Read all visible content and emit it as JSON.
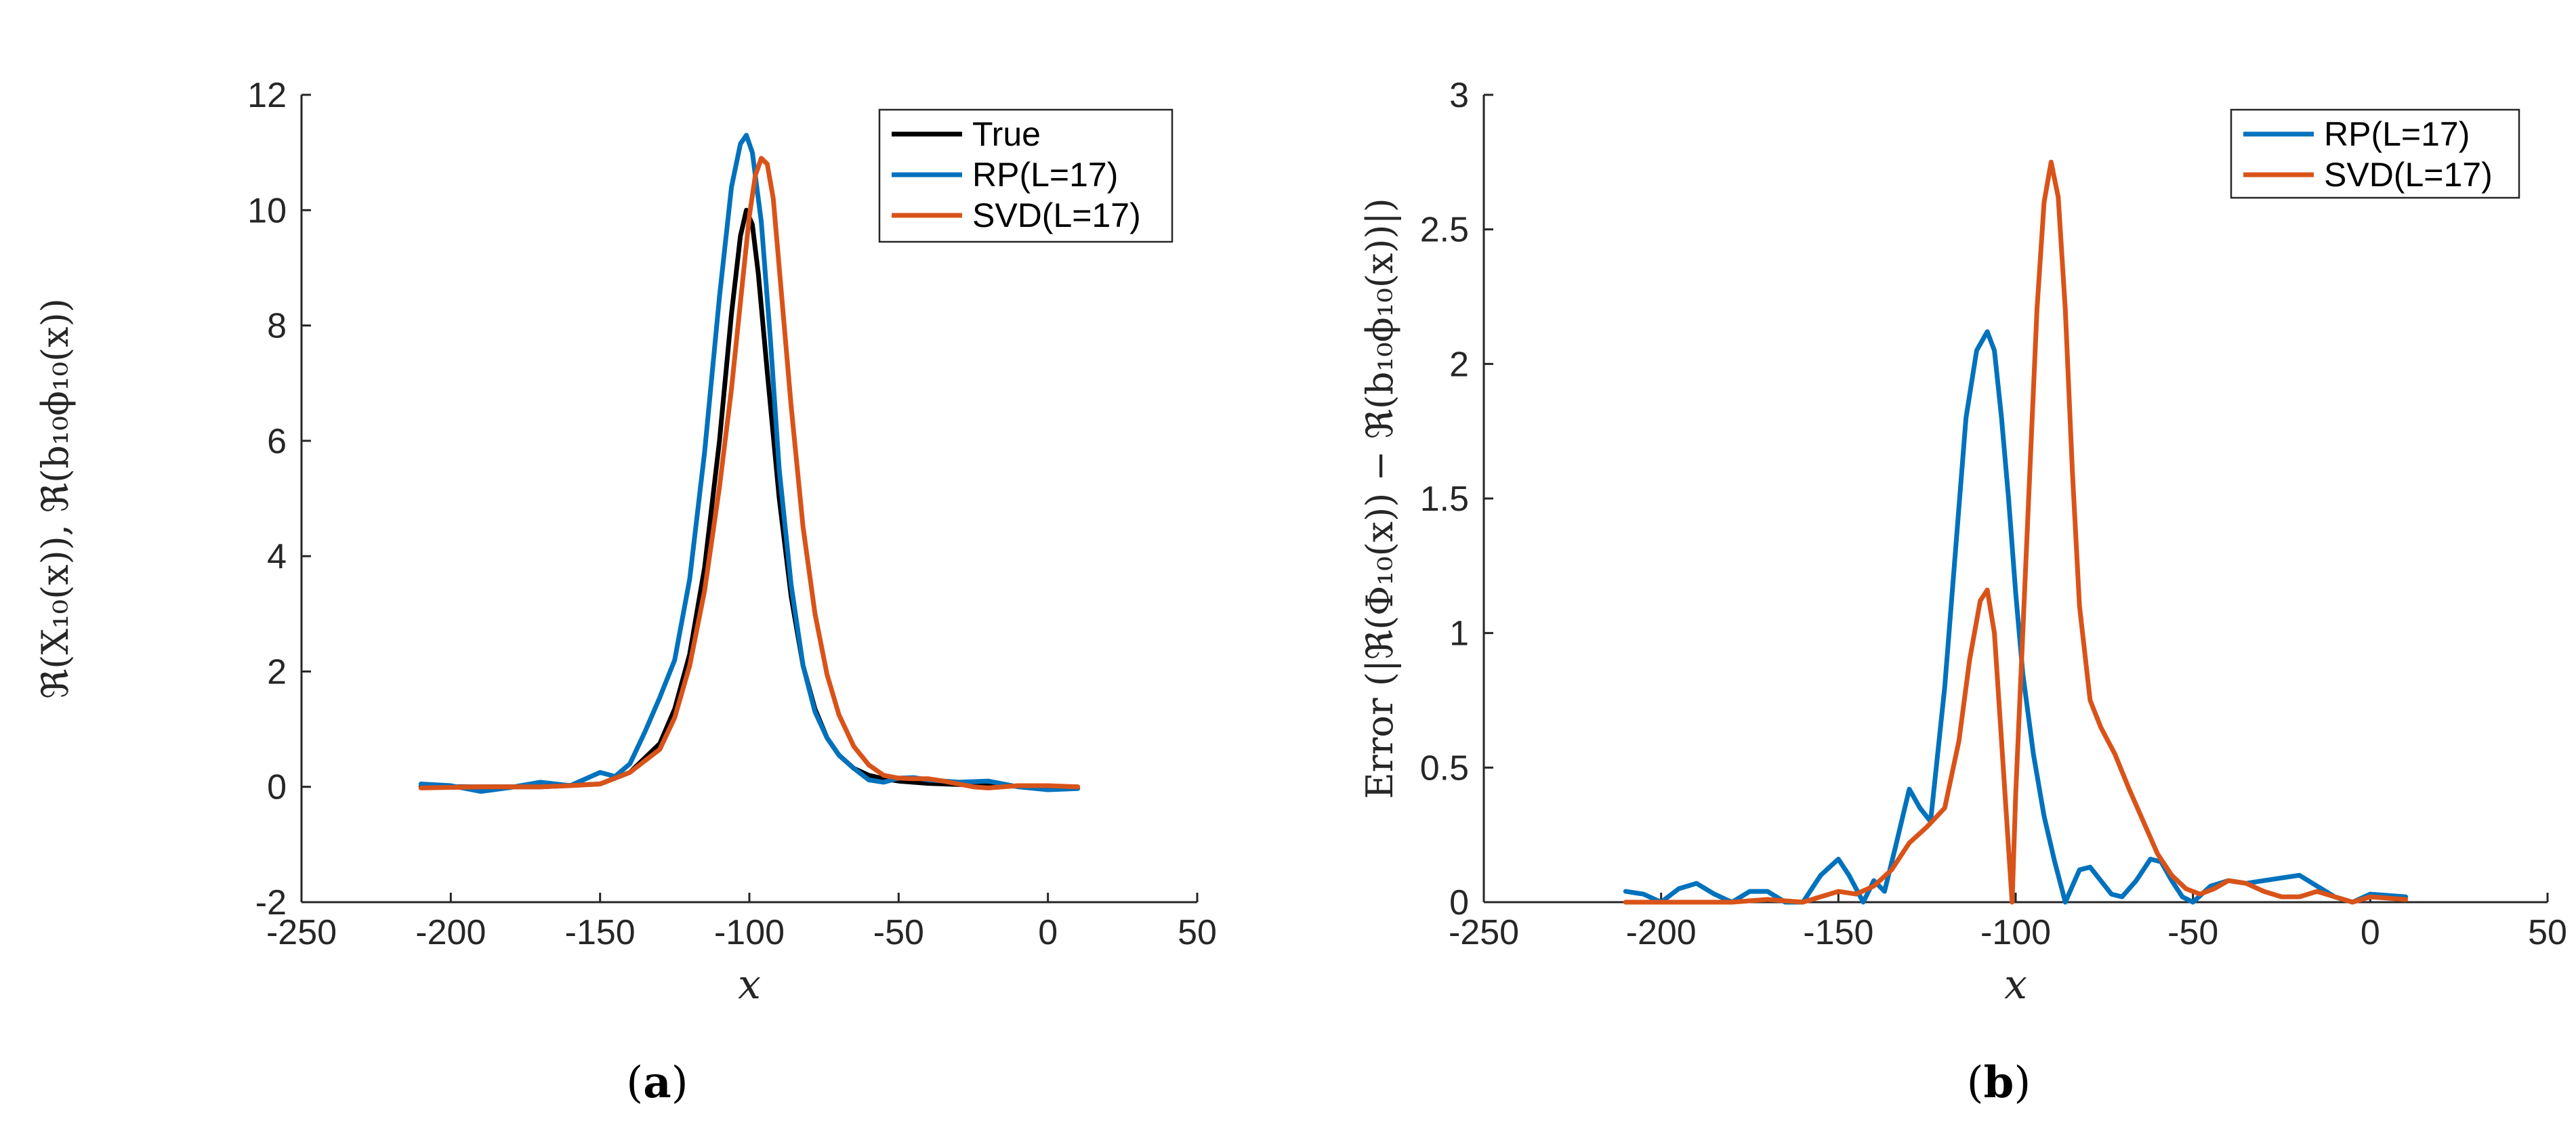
{
  "chart_data": [
    {
      "type": "line",
      "panel": "a",
      "caption": "(a)",
      "caption_parts": [
        "(",
        "a",
        ")"
      ],
      "xlabel": "x",
      "ylabel": "ℜ(X₁₀(x)), ℜ(b₁₀ϕ₁₀(x))",
      "xlim": [
        -250,
        50
      ],
      "ylim": [
        -2,
        12
      ],
      "xticks": [
        -250,
        -200,
        -150,
        -100,
        -50,
        0,
        50
      ],
      "yticks": [
        -2,
        0,
        2,
        4,
        6,
        8,
        10,
        12
      ],
      "xtick_labels": [
        "-250",
        "-200",
        "-150",
        "-100",
        "-50",
        "0",
        "50"
      ],
      "ytick_labels": [
        "-2",
        "0",
        "2",
        "4",
        "6",
        "8",
        "10",
        "12"
      ],
      "legend_position": "top-right",
      "series": [
        {
          "name": "True",
          "color": "#000000",
          "x": [
            -210,
            -190,
            -170,
            -150,
            -140,
            -130,
            -125,
            -120,
            -115,
            -110,
            -106,
            -103,
            -101,
            -99,
            -97,
            -94,
            -90,
            -86,
            -82,
            -78,
            -74,
            -70,
            -65,
            -60,
            -55,
            -50,
            -40,
            -30,
            -20,
            -10,
            0,
            10
          ],
          "y": [
            0,
            0,
            0,
            0.05,
            0.25,
            0.75,
            1.35,
            2.3,
            3.8,
            6.0,
            8.2,
            9.55,
            10.0,
            9.75,
            8.9,
            7.2,
            5.0,
            3.3,
            2.1,
            1.35,
            0.85,
            0.55,
            0.32,
            0.2,
            0.14,
            0.1,
            0.06,
            0.04,
            0.03,
            0.01,
            0,
            0
          ]
        },
        {
          "name": "RP(L=17)",
          "color": "#0072BD",
          "x": [
            -210,
            -200,
            -190,
            -180,
            -170,
            -160,
            -150,
            -145,
            -140,
            -135,
            -130,
            -125,
            -120,
            -115,
            -110,
            -106,
            -103,
            -101,
            -99,
            -96,
            -93,
            -90,
            -86,
            -82,
            -78,
            -74,
            -70,
            -65,
            -60,
            -55,
            -50,
            -45,
            -40,
            -30,
            -20,
            -10,
            0,
            10
          ],
          "y": [
            0.05,
            0.02,
            -0.08,
            -0.01,
            0.08,
            0.02,
            0.25,
            0.18,
            0.4,
            0.95,
            1.55,
            2.2,
            3.6,
            5.8,
            8.5,
            10.4,
            11.15,
            11.3,
            11.0,
            9.8,
            7.8,
            5.5,
            3.5,
            2.1,
            1.3,
            0.85,
            0.55,
            0.32,
            0.12,
            0.08,
            0.15,
            0.16,
            0.12,
            0.08,
            0.1,
            0,
            -0.05,
            -0.03
          ]
        },
        {
          "name": "SVD(L=17)",
          "color": "#D95319",
          "x": [
            -210,
            -190,
            -170,
            -160,
            -150,
            -140,
            -130,
            -125,
            -120,
            -115,
            -110,
            -106,
            -103,
            -100,
            -98,
            -96,
            -94,
            -92,
            -90,
            -86,
            -82,
            -78,
            -74,
            -70,
            -65,
            -60,
            -55,
            -50,
            -45,
            -40,
            -35,
            -30,
            -25,
            -20,
            -10,
            0,
            10
          ],
          "y": [
            -0.02,
            0,
            0,
            0.02,
            0.05,
            0.25,
            0.65,
            1.2,
            2.1,
            3.4,
            5.2,
            6.9,
            8.4,
            9.9,
            10.6,
            10.9,
            10.8,
            10.2,
            9.0,
            6.6,
            4.5,
            3.0,
            1.95,
            1.25,
            0.7,
            0.38,
            0.2,
            0.15,
            0.14,
            0.14,
            0.1,
            0.05,
            0,
            -0.02,
            0.02,
            0.02,
            0
          ]
        }
      ]
    },
    {
      "type": "line",
      "panel": "b",
      "caption": "(b)",
      "caption_parts": [
        "(",
        "b",
        ")"
      ],
      "xlabel": "x",
      "ylabel": "Error (|ℜ(Φ₁₀(x)) − ℜ(b₁₀ϕ₁₀(x))|)",
      "xlim": [
        -250,
        50
      ],
      "ylim": [
        0,
        3
      ],
      "xticks": [
        -250,
        -200,
        -150,
        -100,
        -50,
        0,
        50
      ],
      "yticks": [
        0,
        0.5,
        1,
        1.5,
        2,
        2.5,
        3
      ],
      "xtick_labels": [
        "-250",
        "-200",
        "-150",
        "-100",
        "-50",
        "0",
        "50"
      ],
      "ytick_labels": [
        "0",
        "0.5",
        "1",
        "1.5",
        "2",
        "2.5",
        "3"
      ],
      "legend_position": "top-right",
      "series": [
        {
          "name": "RP(L=17)",
          "color": "#0072BD",
          "x": [
            -210,
            -205,
            -200,
            -195,
            -190,
            -185,
            -180,
            -175,
            -170,
            -165,
            -160,
            -155,
            -150,
            -147,
            -143,
            -140,
            -137,
            -134,
            -130,
            -127,
            -124,
            -120,
            -117,
            -114,
            -111,
            -108,
            -106,
            -104,
            -102,
            -100,
            -98,
            -95,
            -92,
            -89,
            -86,
            -84,
            -82,
            -79,
            -76,
            -73,
            -70,
            -66,
            -62,
            -59,
            -56,
            -53,
            -50,
            -45,
            -40,
            -35,
            -30,
            -25,
            -20,
            -15,
            -10,
            -5,
            0,
            10
          ],
          "y": [
            0.04,
            0.03,
            0.0,
            0.05,
            0.07,
            0.03,
            0.0,
            0.04,
            0.04,
            0.0,
            0.0,
            0.1,
            0.16,
            0.1,
            0.0,
            0.08,
            0.04,
            0.2,
            0.42,
            0.35,
            0.3,
            0.8,
            1.3,
            1.8,
            2.05,
            2.12,
            2.05,
            1.8,
            1.5,
            1.15,
            0.85,
            0.55,
            0.32,
            0.15,
            0.0,
            0.06,
            0.12,
            0.13,
            0.08,
            0.03,
            0.02,
            0.08,
            0.16,
            0.15,
            0.08,
            0.02,
            0.0,
            0.06,
            0.08,
            0.07,
            0.08,
            0.09,
            0.1,
            0.06,
            0.02,
            0.0,
            0.03,
            0.02
          ]
        },
        {
          "name": "SVD(L=17)",
          "color": "#D95319",
          "x": [
            -210,
            -200,
            -190,
            -180,
            -170,
            -160,
            -150,
            -145,
            -140,
            -135,
            -130,
            -125,
            -120,
            -116,
            -113,
            -110,
            -108,
            -106,
            -104,
            -102,
            -101,
            -100,
            -98,
            -96,
            -94,
            -92,
            -90,
            -88,
            -86,
            -84,
            -82,
            -79,
            -76,
            -72,
            -68,
            -64,
            -60,
            -56,
            -52,
            -48,
            -44,
            -40,
            -35,
            -30,
            -25,
            -20,
            -15,
            -10,
            -5,
            0,
            10
          ],
          "y": [
            0.0,
            0.0,
            0.0,
            0.0,
            0.01,
            0.0,
            0.04,
            0.03,
            0.06,
            0.12,
            0.22,
            0.28,
            0.35,
            0.6,
            0.9,
            1.12,
            1.16,
            1.0,
            0.6,
            0.2,
            0.0,
            0.4,
            1.0,
            1.6,
            2.2,
            2.6,
            2.75,
            2.62,
            2.2,
            1.6,
            1.1,
            0.75,
            0.65,
            0.55,
            0.42,
            0.3,
            0.18,
            0.1,
            0.05,
            0.03,
            0.05,
            0.08,
            0.07,
            0.04,
            0.02,
            0.02,
            0.04,
            0.02,
            0.0,
            0.02,
            0.01
          ]
        }
      ]
    }
  ]
}
